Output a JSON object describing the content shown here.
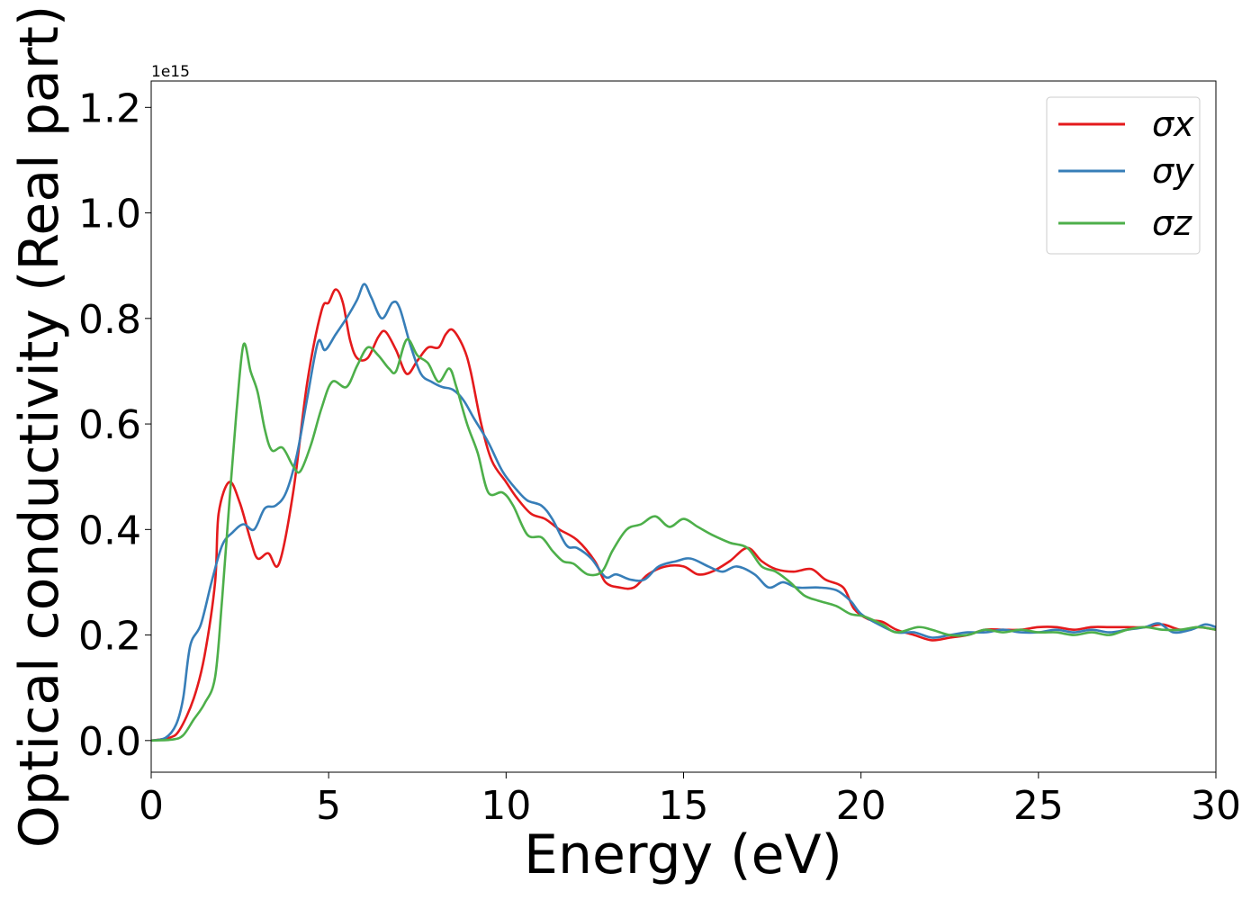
{
  "chart_data": {
    "type": "line",
    "title": "",
    "xlabel": "Energy (eV)",
    "ylabel": "Optical conductivity (Real part)",
    "y_offset_label": "1e15",
    "xlim": [
      0,
      30
    ],
    "ylim": [
      -0.06,
      1.25
    ],
    "y_scale_exponent": 15,
    "x_ticks": [
      0,
      5,
      10,
      15,
      20,
      25,
      30
    ],
    "x_tick_labels": [
      "0",
      "5",
      "10",
      "15",
      "20",
      "25",
      "30"
    ],
    "y_ticks": [
      0.0,
      0.2,
      0.4,
      0.6,
      0.8,
      1.0,
      1.2
    ],
    "y_tick_labels": [
      "0.0",
      "0.2",
      "0.4",
      "0.6",
      "0.8",
      "1.0",
      "1.2"
    ],
    "grid": false,
    "legend_position": "top-right",
    "series": [
      {
        "name": "σx",
        "color": "#e41a1c",
        "points": [
          [
            0,
            0
          ],
          [
            0.5,
            0.005
          ],
          [
            0.8,
            0.02
          ],
          [
            1.2,
            0.08
          ],
          [
            1.5,
            0.16
          ],
          [
            1.8,
            0.3
          ],
          [
            1.9,
            0.43
          ],
          [
            2.2,
            0.49
          ],
          [
            2.5,
            0.45
          ],
          [
            2.8,
            0.38
          ],
          [
            3.0,
            0.345
          ],
          [
            3.3,
            0.355
          ],
          [
            3.6,
            0.335
          ],
          [
            4.0,
            0.47
          ],
          [
            4.4,
            0.68
          ],
          [
            4.8,
            0.815
          ],
          [
            5.0,
            0.83
          ],
          [
            5.2,
            0.855
          ],
          [
            5.4,
            0.83
          ],
          [
            5.6,
            0.76
          ],
          [
            5.8,
            0.725
          ],
          [
            6.1,
            0.725
          ],
          [
            6.4,
            0.765
          ],
          [
            6.6,
            0.775
          ],
          [
            6.9,
            0.74
          ],
          [
            7.2,
            0.695
          ],
          [
            7.5,
            0.72
          ],
          [
            7.8,
            0.745
          ],
          [
            8.1,
            0.745
          ],
          [
            8.3,
            0.77
          ],
          [
            8.5,
            0.778
          ],
          [
            8.8,
            0.745
          ],
          [
            9.0,
            0.7
          ],
          [
            9.3,
            0.6
          ],
          [
            9.6,
            0.53
          ],
          [
            10.0,
            0.49
          ],
          [
            10.3,
            0.46
          ],
          [
            10.7,
            0.43
          ],
          [
            11.1,
            0.42
          ],
          [
            11.5,
            0.4
          ],
          [
            12.0,
            0.38
          ],
          [
            12.5,
            0.34
          ],
          [
            12.8,
            0.3
          ],
          [
            13.2,
            0.29
          ],
          [
            13.6,
            0.29
          ],
          [
            14.0,
            0.315
          ],
          [
            14.5,
            0.33
          ],
          [
            15.0,
            0.33
          ],
          [
            15.4,
            0.315
          ],
          [
            15.8,
            0.32
          ],
          [
            16.3,
            0.34
          ],
          [
            16.8,
            0.365
          ],
          [
            17.2,
            0.34
          ],
          [
            17.6,
            0.325
          ],
          [
            18.1,
            0.32
          ],
          [
            18.6,
            0.325
          ],
          [
            19.0,
            0.305
          ],
          [
            19.5,
            0.29
          ],
          [
            19.8,
            0.25
          ],
          [
            20.2,
            0.23
          ],
          [
            20.6,
            0.225
          ],
          [
            21.0,
            0.21
          ],
          [
            21.5,
            0.2
          ],
          [
            22.0,
            0.19
          ],
          [
            22.5,
            0.195
          ],
          [
            23.0,
            0.2
          ],
          [
            23.5,
            0.21
          ],
          [
            24.0,
            0.21
          ],
          [
            24.5,
            0.21
          ],
          [
            25.0,
            0.215
          ],
          [
            25.5,
            0.215
          ],
          [
            26.0,
            0.21
          ],
          [
            26.5,
            0.215
          ],
          [
            27.0,
            0.215
          ],
          [
            27.5,
            0.215
          ],
          [
            28.0,
            0.215
          ],
          [
            28.5,
            0.22
          ],
          [
            29.0,
            0.21
          ],
          [
            29.5,
            0.215
          ],
          [
            30.0,
            0.21
          ]
        ]
      },
      {
        "name": "σy",
        "color": "#377eb8",
        "points": [
          [
            0,
            0
          ],
          [
            0.4,
            0.005
          ],
          [
            0.7,
            0.03
          ],
          [
            0.9,
            0.08
          ],
          [
            1.1,
            0.18
          ],
          [
            1.4,
            0.22
          ],
          [
            1.7,
            0.3
          ],
          [
            2.0,
            0.37
          ],
          [
            2.3,
            0.395
          ],
          [
            2.6,
            0.41
          ],
          [
            2.9,
            0.4
          ],
          [
            3.2,
            0.44
          ],
          [
            3.5,
            0.445
          ],
          [
            3.8,
            0.47
          ],
          [
            4.1,
            0.54
          ],
          [
            4.4,
            0.65
          ],
          [
            4.7,
            0.755
          ],
          [
            4.9,
            0.74
          ],
          [
            5.2,
            0.77
          ],
          [
            5.5,
            0.8
          ],
          [
            5.8,
            0.835
          ],
          [
            6.0,
            0.865
          ],
          [
            6.2,
            0.84
          ],
          [
            6.5,
            0.8
          ],
          [
            6.8,
            0.83
          ],
          [
            7.0,
            0.82
          ],
          [
            7.3,
            0.75
          ],
          [
            7.6,
            0.695
          ],
          [
            7.9,
            0.68
          ],
          [
            8.2,
            0.67
          ],
          [
            8.5,
            0.665
          ],
          [
            8.8,
            0.645
          ],
          [
            9.1,
            0.61
          ],
          [
            9.5,
            0.565
          ],
          [
            9.9,
            0.51
          ],
          [
            10.3,
            0.475
          ],
          [
            10.6,
            0.455
          ],
          [
            11.0,
            0.445
          ],
          [
            11.3,
            0.42
          ],
          [
            11.7,
            0.37
          ],
          [
            12.0,
            0.365
          ],
          [
            12.4,
            0.345
          ],
          [
            12.8,
            0.31
          ],
          [
            13.1,
            0.315
          ],
          [
            13.5,
            0.305
          ],
          [
            13.9,
            0.305
          ],
          [
            14.3,
            0.33
          ],
          [
            14.8,
            0.34
          ],
          [
            15.2,
            0.345
          ],
          [
            15.7,
            0.33
          ],
          [
            16.1,
            0.32
          ],
          [
            16.5,
            0.33
          ],
          [
            17.0,
            0.315
          ],
          [
            17.4,
            0.29
          ],
          [
            17.8,
            0.3
          ],
          [
            18.2,
            0.29
          ],
          [
            18.8,
            0.29
          ],
          [
            19.3,
            0.285
          ],
          [
            19.7,
            0.265
          ],
          [
            20.0,
            0.24
          ],
          [
            20.5,
            0.22
          ],
          [
            21.0,
            0.205
          ],
          [
            21.5,
            0.205
          ],
          [
            22.0,
            0.195
          ],
          [
            22.5,
            0.2
          ],
          [
            23.0,
            0.205
          ],
          [
            23.5,
            0.205
          ],
          [
            24.0,
            0.21
          ],
          [
            24.5,
            0.205
          ],
          [
            25.0,
            0.205
          ],
          [
            25.5,
            0.21
          ],
          [
            26.0,
            0.205
          ],
          [
            26.5,
            0.21
          ],
          [
            27.0,
            0.205
          ],
          [
            27.5,
            0.21
          ],
          [
            28.0,
            0.215
          ],
          [
            28.4,
            0.222
          ],
          [
            28.8,
            0.205
          ],
          [
            29.3,
            0.21
          ],
          [
            29.7,
            0.22
          ],
          [
            30.0,
            0.215
          ]
        ]
      },
      {
        "name": "σz",
        "color": "#4daf4a",
        "points": [
          [
            0,
            0
          ],
          [
            0.6,
            0.002
          ],
          [
            0.9,
            0.01
          ],
          [
            1.2,
            0.04
          ],
          [
            1.5,
            0.07
          ],
          [
            1.8,
            0.12
          ],
          [
            2.0,
            0.27
          ],
          [
            2.2,
            0.45
          ],
          [
            2.4,
            0.62
          ],
          [
            2.6,
            0.75
          ],
          [
            2.8,
            0.7
          ],
          [
            3.0,
            0.66
          ],
          [
            3.2,
            0.59
          ],
          [
            3.4,
            0.55
          ],
          [
            3.7,
            0.555
          ],
          [
            4.0,
            0.52
          ],
          [
            4.2,
            0.51
          ],
          [
            4.5,
            0.56
          ],
          [
            4.8,
            0.63
          ],
          [
            5.1,
            0.68
          ],
          [
            5.5,
            0.67
          ],
          [
            5.8,
            0.71
          ],
          [
            6.1,
            0.745
          ],
          [
            6.4,
            0.73
          ],
          [
            6.7,
            0.705
          ],
          [
            6.9,
            0.7
          ],
          [
            7.2,
            0.76
          ],
          [
            7.5,
            0.73
          ],
          [
            7.8,
            0.715
          ],
          [
            8.1,
            0.68
          ],
          [
            8.4,
            0.705
          ],
          [
            8.6,
            0.67
          ],
          [
            8.9,
            0.6
          ],
          [
            9.2,
            0.545
          ],
          [
            9.5,
            0.47
          ],
          [
            9.9,
            0.47
          ],
          [
            10.2,
            0.445
          ],
          [
            10.6,
            0.39
          ],
          [
            11.0,
            0.385
          ],
          [
            11.3,
            0.36
          ],
          [
            11.6,
            0.34
          ],
          [
            11.9,
            0.335
          ],
          [
            12.3,
            0.315
          ],
          [
            12.7,
            0.32
          ],
          [
            13.0,
            0.36
          ],
          [
            13.4,
            0.4
          ],
          [
            13.8,
            0.41
          ],
          [
            14.2,
            0.425
          ],
          [
            14.6,
            0.405
          ],
          [
            15.0,
            0.42
          ],
          [
            15.4,
            0.405
          ],
          [
            15.8,
            0.39
          ],
          [
            16.3,
            0.375
          ],
          [
            16.8,
            0.365
          ],
          [
            17.2,
            0.33
          ],
          [
            17.6,
            0.32
          ],
          [
            18.0,
            0.3
          ],
          [
            18.4,
            0.275
          ],
          [
            18.8,
            0.265
          ],
          [
            19.3,
            0.255
          ],
          [
            19.7,
            0.24
          ],
          [
            20.1,
            0.235
          ],
          [
            20.6,
            0.22
          ],
          [
            21.0,
            0.205
          ],
          [
            21.6,
            0.215
          ],
          [
            22.0,
            0.21
          ],
          [
            22.5,
            0.2
          ],
          [
            23.0,
            0.2
          ],
          [
            23.5,
            0.21
          ],
          [
            24.0,
            0.205
          ],
          [
            24.5,
            0.21
          ],
          [
            25.0,
            0.205
          ],
          [
            25.5,
            0.205
          ],
          [
            26.0,
            0.2
          ],
          [
            26.5,
            0.205
          ],
          [
            27.0,
            0.2
          ],
          [
            27.5,
            0.21
          ],
          [
            28.0,
            0.215
          ],
          [
            28.5,
            0.21
          ],
          [
            29.0,
            0.21
          ],
          [
            29.5,
            0.215
          ],
          [
            30.0,
            0.21
          ]
        ]
      }
    ]
  }
}
